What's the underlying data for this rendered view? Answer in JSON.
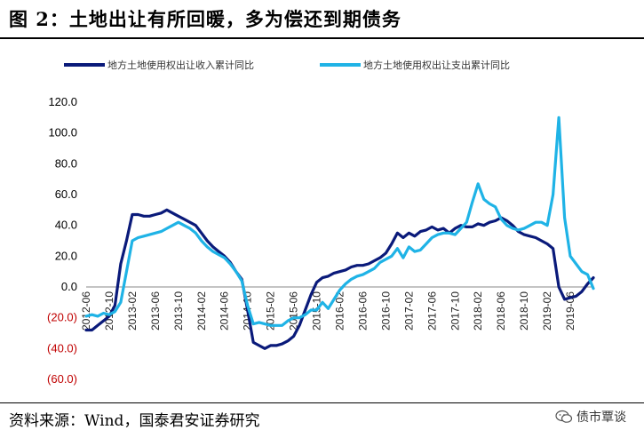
{
  "title": "图 2：土地出让有所回暖，多为偿还到期债务",
  "source": "资料来源：Wind，国泰君安证券研究",
  "watermark": "债市覃谈",
  "colors": {
    "series1": "#0a1a7a",
    "series2": "#1fb3e6",
    "negative": "#c00000",
    "positive": "#000000"
  },
  "chart_data": {
    "type": "line",
    "title": "",
    "xlabel": "",
    "ylabel": "",
    "ylim": [
      -60,
      120
    ],
    "yticks": [
      120,
      100,
      80,
      60,
      40,
      20,
      0,
      -20,
      -40,
      -60
    ],
    "ytick_labels": [
      "120.0",
      "100.0",
      "80.0",
      "60.0",
      "40.0",
      "20.0",
      "0.0",
      "(20.0)",
      "(40.0)",
      "(60.0)"
    ],
    "xtick_labels": [
      "2012-06",
      "2012-10",
      "2013-02",
      "2013-06",
      "2013-10",
      "2014-02",
      "2014-06",
      "2014-10",
      "2015-02",
      "2015-06",
      "2015-10",
      "2016-02",
      "2016-06",
      "2016-10",
      "2017-02",
      "2017-06",
      "2017-10",
      "2018-02",
      "2018-06",
      "2018-10",
      "2019-02",
      "2019-06"
    ],
    "xtick_positions": [
      0,
      4,
      8,
      12,
      16,
      20,
      24,
      28,
      32,
      36,
      40,
      44,
      48,
      52,
      56,
      60,
      64,
      68,
      72,
      76,
      80,
      84
    ],
    "x_range": [
      0,
      88
    ],
    "legend_position": "top",
    "series": [
      {
        "name": "地方土地使用权出让收入累计同比",
        "x": [
          0,
          1,
          2,
          3,
          4,
          5,
          6,
          7,
          8,
          9,
          10,
          11,
          12,
          13,
          14,
          15,
          16,
          17,
          18,
          19,
          20,
          21,
          22,
          23,
          24,
          25,
          26,
          27,
          28,
          29,
          30,
          31,
          32,
          33,
          34,
          35,
          36,
          37,
          38,
          39,
          40,
          41,
          42,
          43,
          44,
          45,
          46,
          47,
          48,
          49,
          50,
          51,
          52,
          53,
          54,
          55,
          56,
          57,
          58,
          59,
          60,
          61,
          62,
          63,
          64,
          65,
          66,
          67,
          68,
          69,
          70,
          71,
          72,
          73,
          74,
          75,
          76,
          77,
          78,
          79,
          80,
          81,
          82,
          83,
          84,
          85,
          86,
          87,
          88
        ],
        "values": [
          -28,
          -28,
          -25,
          -22,
          -19,
          -12,
          15,
          30,
          47,
          47,
          46,
          46,
          47,
          48,
          50,
          48,
          46,
          44,
          42,
          40,
          35,
          30,
          26,
          23,
          20,
          16,
          10,
          5,
          -15,
          -36,
          -38,
          -40,
          -38,
          -38,
          -37,
          -35,
          -32,
          -25,
          -15,
          -5,
          3,
          6,
          7,
          9,
          10,
          11,
          13,
          14,
          14,
          15,
          17,
          19,
          22,
          28,
          35,
          32,
          35,
          33,
          36,
          37,
          39,
          37,
          38,
          35,
          38,
          40,
          39,
          39,
          41,
          40,
          42,
          43,
          45,
          43,
          40,
          36,
          34,
          33,
          32,
          30,
          28,
          25,
          0,
          -8,
          -7,
          -6,
          -3,
          2,
          6
        ]
      },
      {
        "name": "地方土地使用权出让支出累计同比",
        "x": [
          0,
          1,
          2,
          3,
          4,
          5,
          6,
          7,
          8,
          9,
          10,
          11,
          12,
          13,
          14,
          15,
          16,
          17,
          18,
          19,
          20,
          21,
          22,
          23,
          24,
          25,
          26,
          27,
          28,
          29,
          30,
          31,
          32,
          33,
          34,
          35,
          36,
          37,
          38,
          39,
          40,
          41,
          42,
          43,
          44,
          45,
          46,
          47,
          48,
          49,
          50,
          51,
          52,
          53,
          54,
          55,
          56,
          57,
          58,
          59,
          60,
          61,
          62,
          63,
          64,
          65,
          66,
          67,
          68,
          69,
          70,
          71,
          72,
          73,
          74,
          75,
          76,
          77,
          78,
          79,
          80,
          81,
          82,
          83,
          84,
          85,
          86,
          87,
          88
        ],
        "values": [
          -19,
          -18,
          -19,
          -17,
          -18,
          -16,
          -10,
          10,
          30,
          32,
          33,
          34,
          35,
          36,
          38,
          40,
          42,
          40,
          38,
          35,
          30,
          26,
          23,
          21,
          19,
          15,
          10,
          4,
          -12,
          -24,
          -23,
          -24,
          -25,
          -25,
          -25,
          -22,
          -20,
          -20,
          -18,
          -15,
          -15,
          -10,
          -14,
          -8,
          -2,
          2,
          5,
          7,
          8,
          10,
          12,
          16,
          18,
          20,
          25,
          19,
          26,
          23,
          24,
          28,
          32,
          34,
          35,
          35,
          34,
          38,
          42,
          55,
          67,
          57,
          54,
          52,
          44,
          40,
          38,
          37,
          38,
          40,
          42,
          42,
          40,
          60,
          110,
          45,
          20,
          15,
          10,
          8,
          -1
        ]
      }
    ]
  }
}
